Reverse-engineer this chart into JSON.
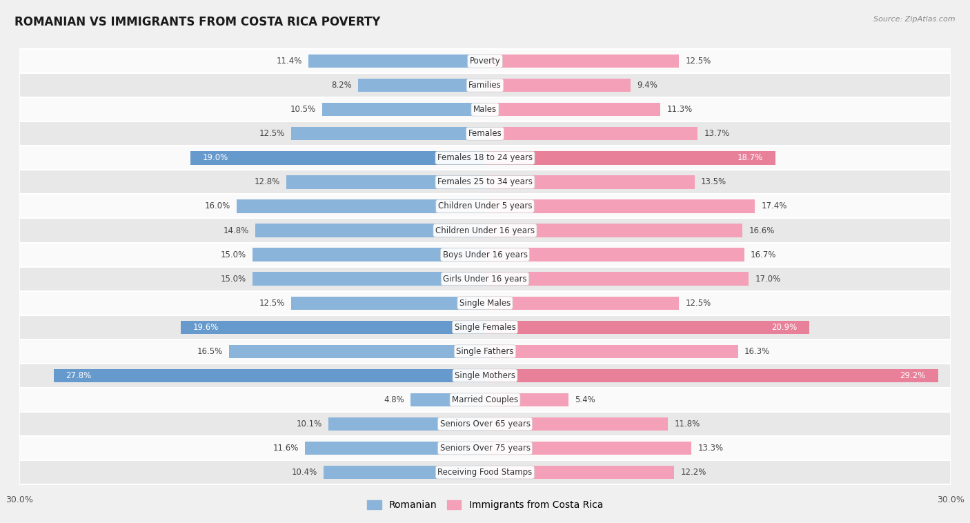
{
  "title": "ROMANIAN VS IMMIGRANTS FROM COSTA RICA POVERTY",
  "source": "Source: ZipAtlas.com",
  "categories": [
    "Poverty",
    "Families",
    "Males",
    "Females",
    "Females 18 to 24 years",
    "Females 25 to 34 years",
    "Children Under 5 years",
    "Children Under 16 years",
    "Boys Under 16 years",
    "Girls Under 16 years",
    "Single Males",
    "Single Females",
    "Single Fathers",
    "Single Mothers",
    "Married Couples",
    "Seniors Over 65 years",
    "Seniors Over 75 years",
    "Receiving Food Stamps"
  ],
  "romanian_values": [
    11.4,
    8.2,
    10.5,
    12.5,
    19.0,
    12.8,
    16.0,
    14.8,
    15.0,
    15.0,
    12.5,
    19.6,
    16.5,
    27.8,
    4.8,
    10.1,
    11.6,
    10.4
  ],
  "costarica_values": [
    12.5,
    9.4,
    11.3,
    13.7,
    18.7,
    13.5,
    17.4,
    16.6,
    16.7,
    17.0,
    12.5,
    20.9,
    16.3,
    29.2,
    5.4,
    11.8,
    13.3,
    12.2
  ],
  "romanian_color": "#8ab4d9",
  "costarica_color": "#f4a0b8",
  "romanian_highlight_indices": [
    4,
    11,
    13
  ],
  "costarica_highlight_indices": [
    4,
    11,
    13
  ],
  "romanian_highlight_color": "#6699cc",
  "costarica_highlight_color": "#e8809a",
  "background_color": "#f0f0f0",
  "row_even_color": "#fafafa",
  "row_odd_color": "#e8e8e8",
  "x_max": 30.0,
  "label_fontsize": 8.5,
  "value_fontsize": 8.5,
  "title_fontsize": 12,
  "legend_labels": [
    "Romanian",
    "Immigrants from Costa Rica"
  ]
}
